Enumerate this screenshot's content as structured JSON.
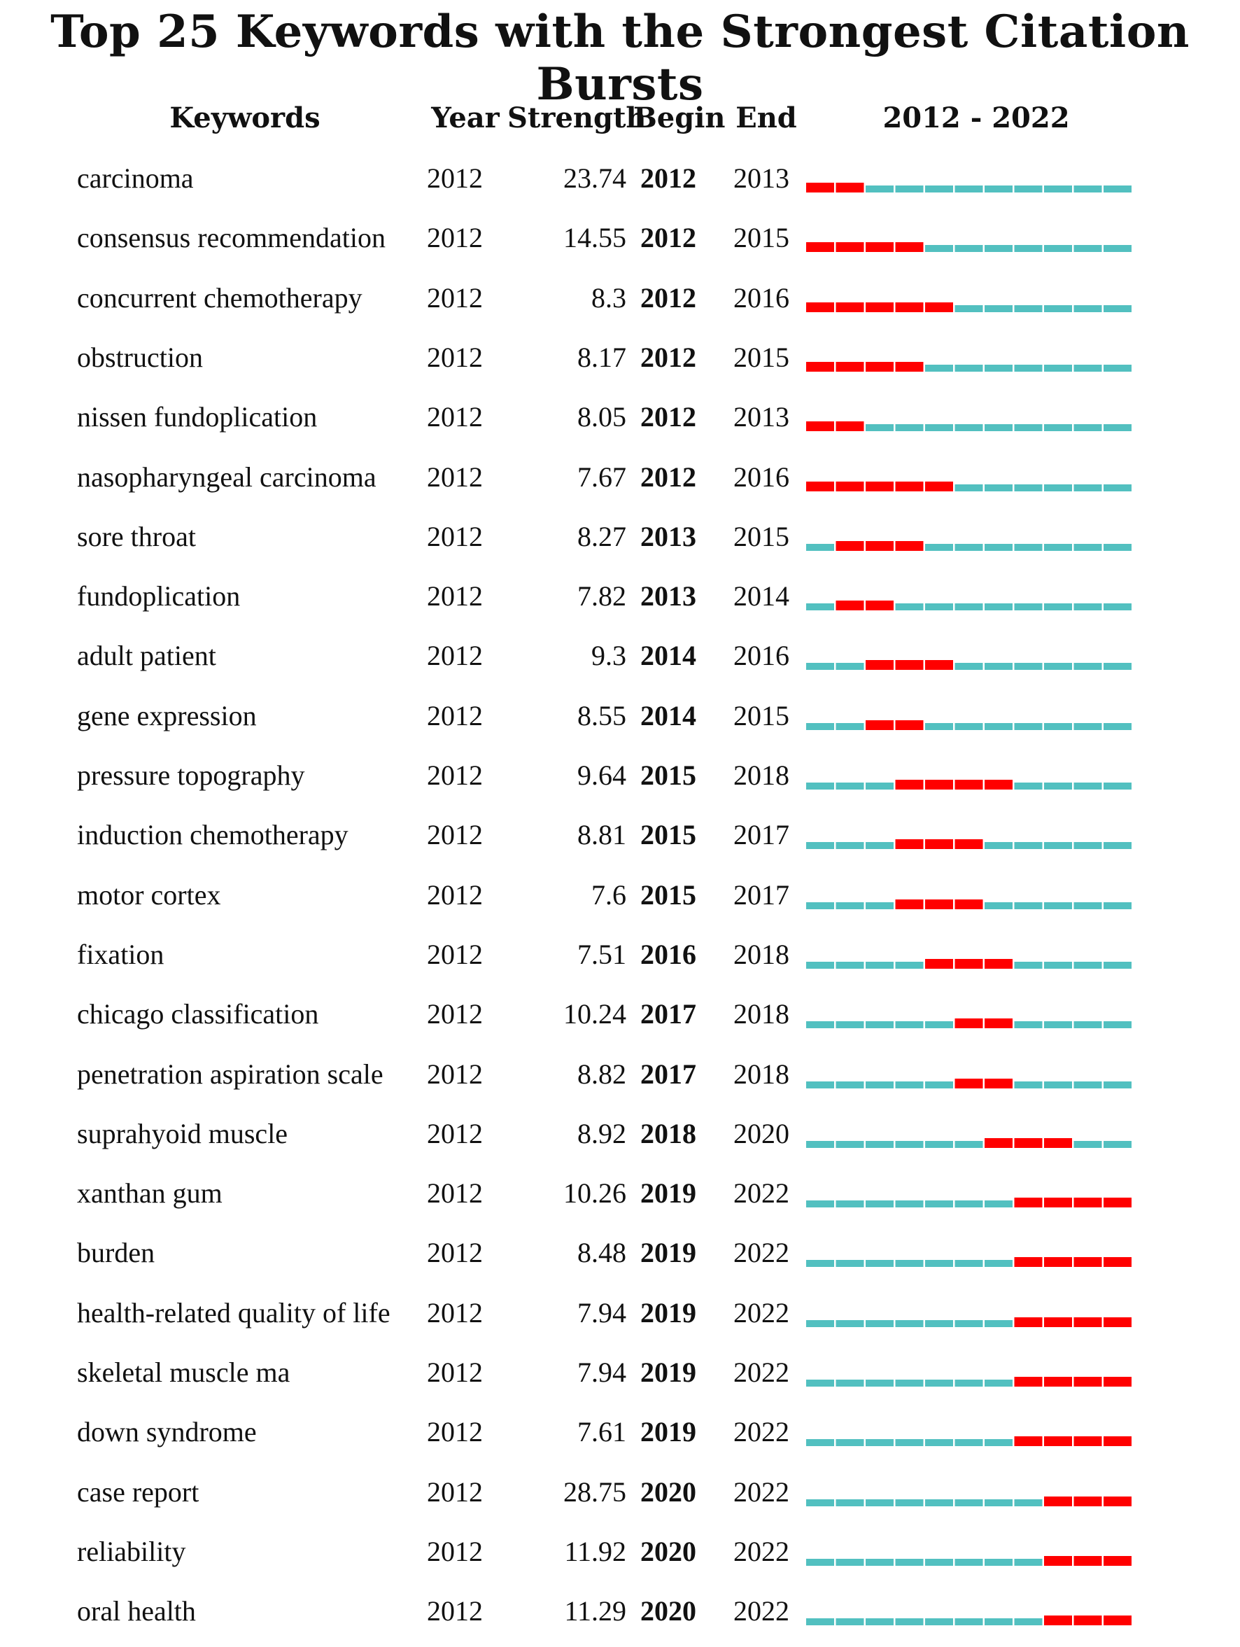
{
  "chart_data": {
    "type": "table",
    "title": "Top 25 Keywords with the Strongest Citation Bursts",
    "columns": [
      "Keywords",
      "Year",
      "Strength",
      "Begin",
      "End",
      "2012 - 2022"
    ],
    "range_start": 2012,
    "range_end": 2022,
    "colors": {
      "burst": "#ff0000",
      "baseline": "#52c0c0"
    },
    "rows": [
      {
        "keyword": "carcinoma",
        "year": "2012",
        "strength": "23.74",
        "begin": "2012",
        "end": "2013"
      },
      {
        "keyword": "consensus recommendation",
        "year": "2012",
        "strength": "14.55",
        "begin": "2012",
        "end": "2015"
      },
      {
        "keyword": "concurrent chemotherapy",
        "year": "2012",
        "strength": "8.3",
        "begin": "2012",
        "end": "2016"
      },
      {
        "keyword": "obstruction",
        "year": "2012",
        "strength": "8.17",
        "begin": "2012",
        "end": "2015"
      },
      {
        "keyword": "nissen fundoplication",
        "year": "2012",
        "strength": "8.05",
        "begin": "2012",
        "end": "2013"
      },
      {
        "keyword": "nasopharyngeal carcinoma",
        "year": "2012",
        "strength": "7.67",
        "begin": "2012",
        "end": "2016"
      },
      {
        "keyword": "sore throat",
        "year": "2012",
        "strength": "8.27",
        "begin": "2013",
        "end": "2015"
      },
      {
        "keyword": "fundoplication",
        "year": "2012",
        "strength": "7.82",
        "begin": "2013",
        "end": "2014"
      },
      {
        "keyword": "adult patient",
        "year": "2012",
        "strength": "9.3",
        "begin": "2014",
        "end": "2016"
      },
      {
        "keyword": "gene expression",
        "year": "2012",
        "strength": "8.55",
        "begin": "2014",
        "end": "2015"
      },
      {
        "keyword": "pressure topography",
        "year": "2012",
        "strength": "9.64",
        "begin": "2015",
        "end": "2018"
      },
      {
        "keyword": "induction chemotherapy",
        "year": "2012",
        "strength": "8.81",
        "begin": "2015",
        "end": "2017"
      },
      {
        "keyword": "motor cortex",
        "year": "2012",
        "strength": "7.6",
        "begin": "2015",
        "end": "2017"
      },
      {
        "keyword": "fixation",
        "year": "2012",
        "strength": "7.51",
        "begin": "2016",
        "end": "2018"
      },
      {
        "keyword": "chicago classification",
        "year": "2012",
        "strength": "10.24",
        "begin": "2017",
        "end": "2018"
      },
      {
        "keyword": "penetration aspiration scale",
        "year": "2012",
        "strength": "8.82",
        "begin": "2017",
        "end": "2018"
      },
      {
        "keyword": "suprahyoid muscle",
        "year": "2012",
        "strength": "8.92",
        "begin": "2018",
        "end": "2020"
      },
      {
        "keyword": "xanthan gum",
        "year": "2012",
        "strength": "10.26",
        "begin": "2019",
        "end": "2022"
      },
      {
        "keyword": "burden",
        "year": "2012",
        "strength": "8.48",
        "begin": "2019",
        "end": "2022"
      },
      {
        "keyword": "health-related quality of life",
        "year": "2012",
        "strength": "7.94",
        "begin": "2019",
        "end": "2022"
      },
      {
        "keyword": "skeletal muscle ma",
        "year": "2012",
        "strength": "7.94",
        "begin": "2019",
        "end": "2022"
      },
      {
        "keyword": "down syndrome",
        "year": "2012",
        "strength": "7.61",
        "begin": "2019",
        "end": "2022"
      },
      {
        "keyword": "case report",
        "year": "2012",
        "strength": "28.75",
        "begin": "2020",
        "end": "2022"
      },
      {
        "keyword": "reliability",
        "year": "2012",
        "strength": "11.92",
        "begin": "2020",
        "end": "2022"
      },
      {
        "keyword": "oral health",
        "year": "2012",
        "strength": "11.29",
        "begin": "2020",
        "end": "2022"
      }
    ]
  }
}
